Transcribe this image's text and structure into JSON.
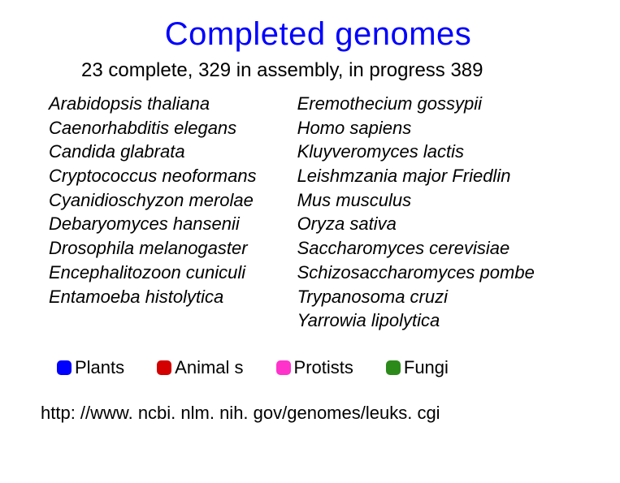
{
  "title": "Completed genomes",
  "subtitle": "23 complete, 329 in assembly, in progress 389",
  "species_col1": [
    "Arabidopsis thaliana",
    "Caenorhabditis elegans",
    "Candida glabrata",
    "Cryptococcus neoformans",
    "Cyanidioschyzon merolae",
    "Debaryomyces hansenii",
    "Drosophila melanogaster",
    "Encephalitozoon cuniculi",
    "Entamoeba histolytica"
  ],
  "species_col2": [
    "Eremothecium gossypii",
    "Homo sapiens",
    "Kluyveromyces lactis",
    "Leishmzania major Friedlin",
    "Mus musculus",
    "Oryza sativa",
    "Saccharomyces cerevisiae",
    "Schizosaccharomyces pombe",
    "Trypanosoma cruzi",
    "Yarrowia lipolytica"
  ],
  "legend": [
    {
      "label": "Plants",
      "color": "#0000ff"
    },
    {
      "label": "Animal s",
      "color": "#d40000"
    },
    {
      "label": "Protists",
      "color": "#ff33cc"
    },
    {
      "label": "Fungi",
      "color": "#2c8a1a"
    }
  ],
  "url": "http: //www. ncbi. nlm. nih. gov/genomes/leuks. cgi",
  "styling": {
    "background_color": "#ffffff",
    "title_color": "#0000ff",
    "text_color": "#000000",
    "title_fontsize": 40,
    "subtitle_fontsize": 24,
    "body_fontsize": 22,
    "species_italic": true,
    "swatch_size": 18,
    "swatch_radius": 5
  }
}
